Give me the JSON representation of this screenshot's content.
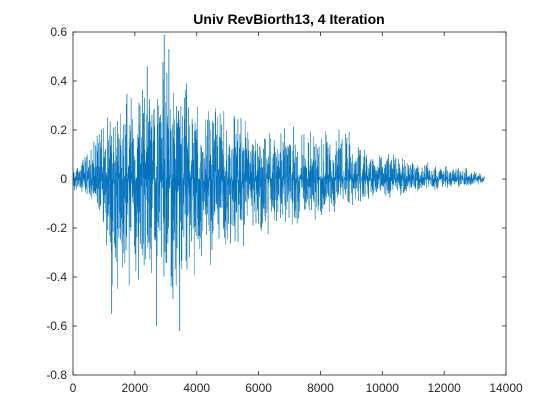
{
  "chart_data": {
    "type": "line",
    "title": "Univ RevBiorth13, 4 Iteration",
    "xlabel": "",
    "ylabel": "",
    "xlim": [
      0,
      14000
    ],
    "ylim": [
      -0.8,
      0.6
    ],
    "x_ticks": [
      0,
      2000,
      4000,
      6000,
      8000,
      10000,
      12000,
      14000
    ],
    "y_ticks": [
      -0.8,
      -0.6,
      -0.4,
      -0.2,
      0,
      0.2,
      0.4,
      0.6
    ],
    "x_tick_labels": [
      "0",
      "2000",
      "4000",
      "6000",
      "8000",
      "10000",
      "12000",
      "14000"
    ],
    "y_tick_labels": [
      "-0.8",
      "-0.6",
      "-0.4",
      "-0.2",
      "0",
      "0.2",
      "0.4",
      "0.6"
    ],
    "grid": false,
    "legend": "none",
    "series_color": "#0072BD",
    "series": [
      {
        "num_samples": 13300,
        "x_range": [
          0,
          13300
        ],
        "envelope": {
          "x": [
            0,
            400,
            800,
            1000,
            1200,
            1600,
            2000,
            2400,
            2800,
            3000,
            3200,
            3400,
            3600,
            4000,
            4400,
            4800,
            5200,
            5600,
            6000,
            6400,
            7000,
            7600,
            8000,
            8400,
            9000,
            9600,
            10000,
            10600,
            11000,
            11600,
            12000,
            12600,
            13000,
            13300
          ],
          "upper": [
            0.05,
            0.1,
            0.2,
            0.3,
            0.3,
            0.38,
            0.37,
            0.46,
            0.5,
            0.59,
            0.44,
            0.43,
            0.45,
            0.39,
            0.33,
            0.3,
            0.3,
            0.25,
            0.22,
            0.2,
            0.23,
            0.21,
            0.21,
            0.2,
            0.23,
            0.13,
            0.12,
            0.1,
            0.08,
            0.07,
            0.06,
            0.05,
            0.04,
            0.02
          ],
          "lower": [
            -0.05,
            -0.08,
            -0.12,
            -0.3,
            -0.55,
            -0.5,
            -0.45,
            -0.5,
            -0.45,
            -0.53,
            -0.5,
            -0.62,
            -0.45,
            -0.42,
            -0.4,
            -0.33,
            -0.32,
            -0.27,
            -0.25,
            -0.22,
            -0.2,
            -0.18,
            -0.18,
            -0.15,
            -0.12,
            -0.1,
            -0.1,
            -0.07,
            -0.06,
            -0.05,
            -0.04,
            -0.04,
            -0.03,
            -0.02
          ]
        }
      }
    ]
  }
}
